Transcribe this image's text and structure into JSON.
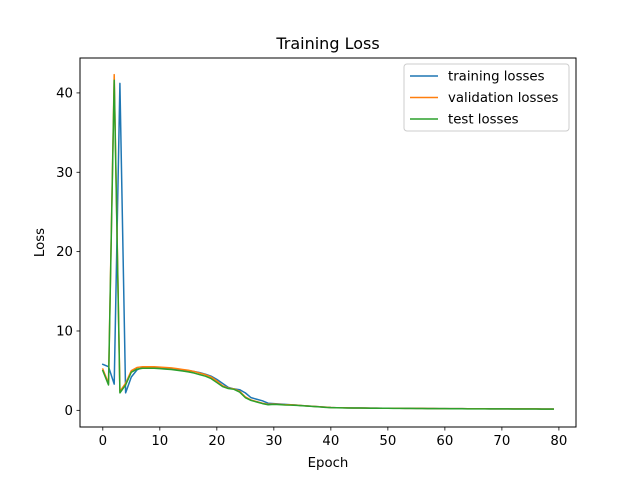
{
  "chart_data": {
    "type": "line",
    "title": "Training Loss",
    "xlabel": "Epoch",
    "ylabel": "Loss",
    "xlim": [
      -4,
      83
    ],
    "ylim": [
      -2.1,
      44.4
    ],
    "xticks": [
      0,
      10,
      20,
      30,
      40,
      50,
      60,
      70,
      80
    ],
    "yticks": [
      0,
      10,
      20,
      30,
      40
    ],
    "grid": false,
    "legend_position": "top-right",
    "series": [
      {
        "name": "training losses",
        "color": "#1f77b4",
        "x": [
          0,
          1,
          2,
          3,
          4,
          5,
          6,
          7,
          8,
          9,
          10,
          11,
          12,
          13,
          14,
          15,
          16,
          17,
          18,
          19,
          20,
          21,
          22,
          23,
          24,
          25,
          26,
          27,
          28,
          29,
          30,
          31,
          32,
          33,
          34,
          35,
          36,
          37,
          38,
          39,
          40,
          41,
          42,
          43,
          44,
          45,
          46,
          47,
          48,
          49,
          50,
          51,
          52,
          53,
          54,
          55,
          56,
          57,
          58,
          59,
          60,
          61,
          62,
          63,
          64,
          65,
          66,
          67,
          68,
          69,
          70,
          71,
          72,
          73,
          74,
          75,
          76,
          77,
          78,
          79
        ],
        "y": [
          5.8,
          5.5,
          3.3,
          41.2,
          2.2,
          4.2,
          5.1,
          5.4,
          5.4,
          5.4,
          5.35,
          5.3,
          5.25,
          5.2,
          5.1,
          5.0,
          4.9,
          4.75,
          4.55,
          4.3,
          3.9,
          3.4,
          2.9,
          2.7,
          2.6,
          2.2,
          1.6,
          1.4,
          1.2,
          0.9,
          0.85,
          0.8,
          0.75,
          0.7,
          0.65,
          0.6,
          0.55,
          0.5,
          0.45,
          0.4,
          0.35,
          0.33,
          0.32,
          0.31,
          0.3,
          0.3,
          0.29,
          0.28,
          0.28,
          0.27,
          0.27,
          0.26,
          0.26,
          0.25,
          0.25,
          0.24,
          0.24,
          0.23,
          0.23,
          0.22,
          0.22,
          0.21,
          0.21,
          0.21,
          0.2,
          0.2,
          0.2,
          0.2,
          0.19,
          0.19,
          0.19,
          0.19,
          0.18,
          0.18,
          0.18,
          0.18,
          0.18,
          0.17,
          0.17,
          0.17
        ]
      },
      {
        "name": "validation losses",
        "color": "#ff7f0e",
        "x": [
          0,
          1,
          2,
          3,
          4,
          5,
          6,
          7,
          8,
          9,
          10,
          11,
          12,
          13,
          14,
          15,
          16,
          17,
          18,
          19,
          20,
          21,
          22,
          23,
          24,
          25,
          26,
          27,
          28,
          29,
          30,
          31,
          32,
          33,
          34,
          35,
          36,
          37,
          38,
          39,
          40,
          41,
          42,
          43,
          44,
          45,
          46,
          47,
          48,
          49,
          50,
          51,
          52,
          53,
          54,
          55,
          56,
          57,
          58,
          59,
          60,
          61,
          62,
          63,
          64,
          65,
          66,
          67,
          68,
          69,
          70,
          71,
          72,
          73,
          74,
          75,
          76,
          77,
          78,
          79
        ],
        "y": [
          5.2,
          3.4,
          42.3,
          2.4,
          3.4,
          5.0,
          5.4,
          5.5,
          5.5,
          5.5,
          5.45,
          5.4,
          5.35,
          5.25,
          5.15,
          5.05,
          4.9,
          4.7,
          4.5,
          4.2,
          3.7,
          3.1,
          2.8,
          2.7,
          2.4,
          1.7,
          1.3,
          1.1,
          0.9,
          0.75,
          0.8,
          0.75,
          0.7,
          0.7,
          0.65,
          0.6,
          0.55,
          0.5,
          0.45,
          0.4,
          0.35,
          0.33,
          0.32,
          0.31,
          0.3,
          0.3,
          0.29,
          0.28,
          0.28,
          0.27,
          0.27,
          0.26,
          0.26,
          0.25,
          0.25,
          0.24,
          0.24,
          0.23,
          0.23,
          0.22,
          0.22,
          0.21,
          0.21,
          0.21,
          0.2,
          0.2,
          0.2,
          0.2,
          0.19,
          0.19,
          0.19,
          0.19,
          0.18,
          0.18,
          0.18,
          0.18,
          0.18,
          0.17,
          0.17,
          0.17
        ]
      },
      {
        "name": "test losses",
        "color": "#2ca02c",
        "x": [
          0,
          1,
          2,
          3,
          4,
          5,
          6,
          7,
          8,
          9,
          10,
          11,
          12,
          13,
          14,
          15,
          16,
          17,
          18,
          19,
          20,
          21,
          22,
          23,
          24,
          25,
          26,
          27,
          28,
          29,
          30,
          31,
          32,
          33,
          34,
          35,
          36,
          37,
          38,
          39,
          40,
          41,
          42,
          43,
          44,
          45,
          46,
          47,
          48,
          49,
          50,
          51,
          52,
          53,
          54,
          55,
          56,
          57,
          58,
          59,
          60,
          61,
          62,
          63,
          64,
          65,
          66,
          67,
          68,
          69,
          70,
          71,
          72,
          73,
          74,
          75,
          76,
          77,
          78,
          79
        ],
        "y": [
          5.0,
          3.2,
          41.6,
          2.2,
          3.2,
          4.8,
          5.2,
          5.3,
          5.3,
          5.3,
          5.25,
          5.2,
          5.15,
          5.05,
          4.95,
          4.85,
          4.7,
          4.5,
          4.3,
          4.0,
          3.5,
          3.0,
          2.75,
          2.65,
          2.3,
          1.6,
          1.25,
          1.05,
          0.85,
          0.7,
          0.75,
          0.72,
          0.68,
          0.66,
          0.62,
          0.58,
          0.53,
          0.48,
          0.43,
          0.38,
          0.34,
          0.32,
          0.31,
          0.3,
          0.29,
          0.29,
          0.28,
          0.27,
          0.27,
          0.26,
          0.26,
          0.25,
          0.25,
          0.24,
          0.24,
          0.23,
          0.23,
          0.22,
          0.22,
          0.21,
          0.21,
          0.2,
          0.2,
          0.2,
          0.19,
          0.19,
          0.19,
          0.19,
          0.18,
          0.18,
          0.18,
          0.18,
          0.17,
          0.17,
          0.17,
          0.17,
          0.17,
          0.16,
          0.16,
          0.16
        ]
      }
    ]
  }
}
